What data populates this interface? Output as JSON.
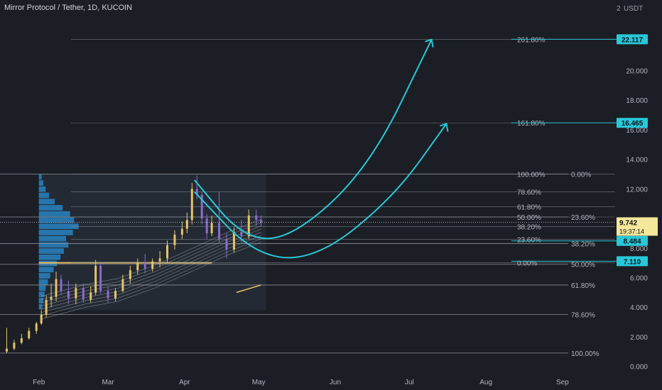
{
  "header": {
    "title": "Mirror Protocol / Tether, 1D, KUCOIN",
    "unit": "USDT",
    "scale_number": "2"
  },
  "colors": {
    "background": "#1b1e24",
    "up_candle": "#e7c46a",
    "down_candle": "#8c6bd0",
    "arrow": "#28c8d8",
    "fib_line": "#8a8f98",
    "volume_profile": "#2a8fd6",
    "price_label": "#f4e79a"
  },
  "chart_data": {
    "type": "candlestick",
    "y_axis": {
      "ticks": [
        0,
        2,
        4,
        6,
        8,
        12,
        14,
        16,
        18,
        20
      ],
      "tick_labels": [
        "0.000",
        "2.000",
        "4.000",
        "6.000",
        "8.000",
        "12.000",
        "14.000",
        "16.000",
        "18.000",
        "20.000"
      ],
      "range": [
        -0.4,
        24.1
      ]
    },
    "x_axis": {
      "labels": [
        "Feb",
        "Mar",
        "Apr",
        "May",
        "Jun",
        "Jul",
        "Aug",
        "Sep"
      ],
      "start_date": "2021-01-18",
      "end_date": "2021-09-20"
    },
    "fib_sets": [
      {
        "name": "outer",
        "levels": [
          {
            "label": "0.00%",
            "value": 13.0
          },
          {
            "label": "23.60%",
            "value": 10.1
          },
          {
            "label": "38.20%",
            "value": 8.3
          },
          {
            "label": "50.00%",
            "value": 6.9
          },
          {
            "label": "61.80%",
            "value": 5.5
          },
          {
            "label": "78.60%",
            "value": 3.5
          },
          {
            "label": "100.00%",
            "value": 0.9
          }
        ]
      },
      {
        "name": "extension",
        "levels": [
          {
            "label": "261.80%",
            "value": 22.117
          },
          {
            "label": "161.80%",
            "value": 16.465
          },
          {
            "label": "100.00%",
            "value": 13.0
          },
          {
            "label": "78.60%",
            "value": 11.8
          },
          {
            "label": "61.80%",
            "value": 10.8
          },
          {
            "label": "50.00%",
            "value": 10.1
          },
          {
            "label": "38.20%",
            "value": 9.45
          },
          {
            "label": "23.60%",
            "value": 8.6
          },
          {
            "label": "0.00%",
            "value": 7.0
          }
        ]
      }
    ],
    "price_labels": [
      {
        "text": "22.117",
        "value": 22.117
      },
      {
        "text": "16.465",
        "value": 16.465
      },
      {
        "text": "8.484",
        "value": 8.484
      },
      {
        "text": "7.110",
        "value": 7.11
      }
    ],
    "current_price": {
      "text": "9.742",
      "countdown": "19:37:14",
      "value": 9.742
    },
    "candles": [
      {
        "date": "2021-01-19",
        "open": 1.0,
        "high": 2.6,
        "low": 0.9,
        "close": 1.2
      },
      {
        "date": "2021-01-22",
        "open": 1.2,
        "high": 1.8,
        "low": 1.1,
        "close": 1.6
      },
      {
        "date": "2021-01-25",
        "open": 1.6,
        "high": 2.2,
        "low": 1.5,
        "close": 1.9
      },
      {
        "date": "2021-01-28",
        "open": 1.9,
        "high": 2.6,
        "low": 1.8,
        "close": 2.4
      },
      {
        "date": "2021-01-31",
        "open": 2.4,
        "high": 3.0,
        "low": 2.2,
        "close": 2.9
      },
      {
        "date": "2021-02-02",
        "open": 2.9,
        "high": 3.8,
        "low": 2.8,
        "close": 3.5
      },
      {
        "date": "2021-02-04",
        "open": 3.5,
        "high": 4.8,
        "low": 3.3,
        "close": 4.5
      },
      {
        "date": "2021-02-06",
        "open": 4.5,
        "high": 5.6,
        "low": 4.0,
        "close": 4.7
      },
      {
        "date": "2021-02-08",
        "open": 4.7,
        "high": 6.4,
        "low": 4.4,
        "close": 5.9
      },
      {
        "date": "2021-02-10",
        "open": 5.9,
        "high": 6.2,
        "low": 4.8,
        "close": 5.1
      },
      {
        "date": "2021-02-13",
        "open": 5.1,
        "high": 5.8,
        "low": 4.2,
        "close": 4.6
      },
      {
        "date": "2021-02-16",
        "open": 4.6,
        "high": 5.6,
        "low": 4.2,
        "close": 5.3
      },
      {
        "date": "2021-02-19",
        "open": 5.3,
        "high": 5.6,
        "low": 4.3,
        "close": 4.5
      },
      {
        "date": "2021-02-22",
        "open": 4.5,
        "high": 5.4,
        "low": 4.3,
        "close": 5.0
      },
      {
        "date": "2021-02-24",
        "open": 5.0,
        "high": 7.2,
        "low": 4.8,
        "close": 6.8
      },
      {
        "date": "2021-02-26",
        "open": 6.8,
        "high": 7.0,
        "low": 4.9,
        "close": 5.1
      },
      {
        "date": "2021-03-01",
        "open": 5.1,
        "high": 5.4,
        "low": 4.3,
        "close": 4.6
      },
      {
        "date": "2021-03-04",
        "open": 4.6,
        "high": 5.3,
        "low": 4.4,
        "close": 5.1
      },
      {
        "date": "2021-03-07",
        "open": 5.1,
        "high": 6.2,
        "low": 5.0,
        "close": 5.9
      },
      {
        "date": "2021-03-10",
        "open": 5.9,
        "high": 6.8,
        "low": 5.6,
        "close": 6.5
      },
      {
        "date": "2021-03-13",
        "open": 6.5,
        "high": 7.3,
        "low": 6.2,
        "close": 7.0
      },
      {
        "date": "2021-03-16",
        "open": 7.0,
        "high": 7.6,
        "low": 6.3,
        "close": 6.6
      },
      {
        "date": "2021-03-19",
        "open": 6.6,
        "high": 7.3,
        "low": 6.4,
        "close": 7.1
      },
      {
        "date": "2021-03-22",
        "open": 7.1,
        "high": 7.8,
        "low": 6.7,
        "close": 7.3
      },
      {
        "date": "2021-03-25",
        "open": 7.3,
        "high": 8.5,
        "low": 7.0,
        "close": 8.2
      },
      {
        "date": "2021-03-28",
        "open": 8.2,
        "high": 9.2,
        "low": 7.9,
        "close": 8.9
      },
      {
        "date": "2021-03-31",
        "open": 8.9,
        "high": 9.8,
        "low": 8.6,
        "close": 9.3
      },
      {
        "date": "2021-04-02",
        "open": 9.3,
        "high": 10.4,
        "low": 9.0,
        "close": 9.9
      },
      {
        "date": "2021-04-04",
        "open": 9.9,
        "high": 12.4,
        "low": 9.6,
        "close": 12.0
      },
      {
        "date": "2021-04-06",
        "open": 12.0,
        "high": 12.9,
        "low": 11.3,
        "close": 11.6
      },
      {
        "date": "2021-04-08",
        "open": 11.6,
        "high": 11.8,
        "low": 9.6,
        "close": 10.0
      },
      {
        "date": "2021-04-10",
        "open": 10.0,
        "high": 10.3,
        "low": 8.6,
        "close": 9.0
      },
      {
        "date": "2021-04-12",
        "open": 9.0,
        "high": 10.2,
        "low": 8.8,
        "close": 9.7
      },
      {
        "date": "2021-04-15",
        "open": 9.7,
        "high": 11.8,
        "low": 8.4,
        "close": 8.6
      },
      {
        "date": "2021-04-18",
        "open": 8.6,
        "high": 9.0,
        "low": 7.3,
        "close": 7.9
      },
      {
        "date": "2021-04-21",
        "open": 7.9,
        "high": 9.4,
        "low": 7.7,
        "close": 9.1
      },
      {
        "date": "2021-04-24",
        "open": 9.1,
        "high": 9.9,
        "low": 8.4,
        "close": 8.8
      },
      {
        "date": "2021-04-27",
        "open": 8.8,
        "high": 10.6,
        "low": 8.6,
        "close": 10.2
      },
      {
        "date": "2021-04-30",
        "open": 10.2,
        "high": 10.6,
        "low": 9.5,
        "close": 9.9
      },
      {
        "date": "2021-05-02",
        "open": 9.9,
        "high": 10.2,
        "low": 9.5,
        "close": 9.742
      }
    ],
    "projection_arrows": [
      {
        "label": "261.80%",
        "points": [
          [
            "2021-04-05",
            12.6
          ],
          [
            "2021-04-25",
            8.6
          ],
          [
            "2021-05-15",
            8.7
          ],
          [
            "2021-06-15",
            13.5
          ],
          [
            "2021-07-10",
            22.1
          ]
        ]
      },
      {
        "label": "161.80%",
        "points": [
          [
            "2021-04-05",
            11.8
          ],
          [
            "2021-04-30",
            7.4
          ],
          [
            "2021-05-25",
            7.3
          ],
          [
            "2021-06-25",
            11.5
          ],
          [
            "2021-07-16",
            16.4
          ]
        ]
      }
    ]
  }
}
